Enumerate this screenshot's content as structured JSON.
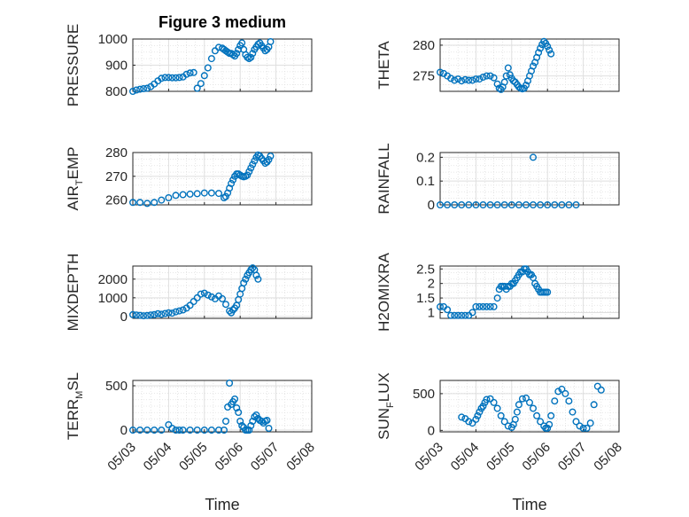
{
  "figure": {
    "title": "Figure 3 medium",
    "marker_color": "#0072bd",
    "axis_color": "#262626",
    "grid_color": "#dfdfdf"
  },
  "chart_data": [
    {
      "type": "scatter",
      "name": "PRESSURE",
      "ylabel": "PRESSURE",
      "title": "Figure 3 medium",
      "xlim": [
        "05/03",
        "05/08"
      ],
      "ylim": [
        800,
        1000
      ],
      "yticks": [
        800,
        900,
        1000
      ],
      "x_days": [
        0.0,
        0.1,
        0.2,
        0.3,
        0.4,
        0.5,
        0.6,
        0.7,
        0.8,
        0.9,
        1.0,
        1.1,
        1.2,
        1.3,
        1.4,
        1.5,
        1.6,
        1.7,
        1.8,
        1.9,
        2.0,
        2.1,
        2.2,
        2.3,
        2.4,
        2.5,
        2.55,
        2.6,
        2.65,
        2.7,
        2.75,
        2.8,
        2.85,
        2.9,
        2.95,
        3.0,
        3.05,
        3.1,
        3.15,
        3.2,
        3.25,
        3.3,
        3.35,
        3.4,
        3.45,
        3.5,
        3.55,
        3.6,
        3.65,
        3.7,
        3.75,
        3.8,
        3.85
      ],
      "y": [
        800,
        805,
        808,
        810,
        812,
        818,
        828,
        840,
        850,
        853,
        853,
        852,
        852,
        853,
        855,
        865,
        870,
        872,
        812,
        830,
        860,
        890,
        925,
        955,
        968,
        965,
        960,
        955,
        950,
        945,
        945,
        940,
        935,
        945,
        960,
        975,
        985,
        960,
        940,
        930,
        925,
        930,
        945,
        960,
        970,
        980,
        985,
        975,
        965,
        955,
        960,
        970,
        990
      ]
    },
    {
      "type": "scatter",
      "name": "THETA",
      "ylabel": "THETA",
      "xlim": [
        "05/03",
        "05/08"
      ],
      "ylim": [
        272.5,
        281
      ],
      "yticks": [
        275,
        280
      ],
      "x_days": [
        0.0,
        0.1,
        0.2,
        0.3,
        0.4,
        0.5,
        0.6,
        0.7,
        0.8,
        0.9,
        1.0,
        1.1,
        1.2,
        1.3,
        1.4,
        1.5,
        1.6,
        1.65,
        1.7,
        1.75,
        1.8,
        1.85,
        1.9,
        1.95,
        2.0,
        2.05,
        2.1,
        2.15,
        2.2,
        2.25,
        2.3,
        2.35,
        2.4,
        2.45,
        2.5,
        2.55,
        2.6,
        2.65,
        2.7,
        2.75,
        2.8,
        2.85,
        2.9,
        2.95,
        3.0,
        3.05,
        3.1
      ],
      "y": [
        275.6,
        275.4,
        275.0,
        274.6,
        274.3,
        274.5,
        274.2,
        274.4,
        274.3,
        274.3,
        274.5,
        274.5,
        274.8,
        275.0,
        275.0,
        274.7,
        273.7,
        273.0,
        272.8,
        273.2,
        274.0,
        275.0,
        276.3,
        275.2,
        274.6,
        274.2,
        274.0,
        273.6,
        273.2,
        273.0,
        272.9,
        273.0,
        273.5,
        274.2,
        275.0,
        275.8,
        276.6,
        277.2,
        278.0,
        278.8,
        279.5,
        280.1,
        280.6,
        280.3,
        279.8,
        279.2,
        278.6
      ]
    },
    {
      "type": "scatter",
      "name": "AIR_TEMP",
      "ylabel": "AIR_TEMP",
      "xlim": [
        "05/03",
        "05/08"
      ],
      "ylim": [
        258,
        280
      ],
      "yticks": [
        260,
        270,
        280
      ],
      "x_days": [
        0.0,
        0.2,
        0.4,
        0.6,
        0.8,
        1.0,
        1.2,
        1.4,
        1.6,
        1.8,
        2.0,
        2.2,
        2.4,
        2.55,
        2.6,
        2.65,
        2.7,
        2.75,
        2.8,
        2.85,
        2.9,
        2.95,
        3.0,
        3.05,
        3.1,
        3.15,
        3.2,
        3.25,
        3.3,
        3.35,
        3.4,
        3.45,
        3.5,
        3.55,
        3.6,
        3.65,
        3.7,
        3.75,
        3.8,
        3.85
      ],
      "y": [
        259.0,
        259.0,
        258.6,
        259.0,
        260.0,
        261.0,
        262.0,
        262.3,
        262.5,
        262.7,
        263.0,
        263.0,
        262.8,
        261.0,
        261.5,
        263.0,
        265.0,
        267.0,
        268.5,
        270.0,
        271.0,
        271.0,
        270.5,
        270.0,
        269.8,
        270.0,
        270.5,
        272.0,
        273.5,
        275.0,
        276.5,
        278.0,
        279.0,
        278.5,
        277.5,
        276.5,
        275.5,
        276.0,
        277.0,
        278.5
      ]
    },
    {
      "type": "scatter",
      "name": "RAINFALL",
      "ylabel": "RAINFALL",
      "xlim": [
        "05/03",
        "05/08"
      ],
      "ylim": [
        0,
        0.22
      ],
      "yticks": [
        0,
        0.1,
        0.2
      ],
      "x_days": [
        0.0,
        0.2,
        0.4,
        0.6,
        0.8,
        1.0,
        1.2,
        1.4,
        1.6,
        1.8,
        2.0,
        2.2,
        2.4,
        2.6,
        2.8,
        3.0,
        3.2,
        3.4,
        3.6,
        3.8,
        2.6
      ],
      "y": [
        0,
        0,
        0,
        0,
        0,
        0,
        0,
        0,
        0,
        0,
        0,
        0,
        0,
        0,
        0,
        0,
        0,
        0,
        0,
        0,
        0.2
      ]
    },
    {
      "type": "scatter",
      "name": "MIXDEPTH",
      "ylabel": "MIXDEPTH",
      "xlim": [
        "05/03",
        "05/08"
      ],
      "ylim": [
        -100,
        2700
      ],
      "yticks": [
        0,
        1000,
        2000
      ],
      "x_days": [
        0.0,
        0.1,
        0.2,
        0.3,
        0.4,
        0.5,
        0.6,
        0.7,
        0.8,
        0.9,
        1.0,
        1.1,
        1.2,
        1.3,
        1.4,
        1.5,
        1.6,
        1.7,
        1.8,
        1.9,
        2.0,
        2.1,
        2.2,
        2.3,
        2.4,
        2.5,
        2.6,
        2.7,
        2.75,
        2.8,
        2.85,
        2.9,
        2.95,
        3.0,
        3.05,
        3.1,
        3.15,
        3.2,
        3.25,
        3.3,
        3.35,
        3.4,
        3.45,
        3.5
      ],
      "y": [
        100,
        80,
        60,
        40,
        50,
        80,
        100,
        150,
        120,
        160,
        200,
        180,
        250,
        300,
        350,
        450,
        600,
        800,
        1000,
        1200,
        1250,
        1150,
        1050,
        950,
        1100,
        950,
        650,
        300,
        200,
        350,
        450,
        600,
        900,
        1200,
        1500,
        1800,
        2000,
        2200,
        2350,
        2500,
        2600,
        2500,
        2200,
        2000
      ]
    },
    {
      "type": "scatter",
      "name": "H2OMIXRA",
      "ylabel": "H2OMIXRA",
      "xlim": [
        "05/03",
        "05/08"
      ],
      "ylim": [
        0.8,
        2.6
      ],
      "yticks": [
        1,
        1.5,
        2,
        2.5
      ],
      "x_days": [
        0.0,
        0.1,
        0.2,
        0.3,
        0.4,
        0.5,
        0.6,
        0.7,
        0.8,
        0.9,
        1.0,
        1.1,
        1.2,
        1.3,
        1.4,
        1.5,
        1.6,
        1.65,
        1.7,
        1.75,
        1.8,
        1.85,
        1.9,
        1.95,
        2.0,
        2.05,
        2.1,
        2.15,
        2.2,
        2.25,
        2.3,
        2.35,
        2.4,
        2.45,
        2.5,
        2.55,
        2.6,
        2.65,
        2.7,
        2.75,
        2.8,
        2.85,
        2.9,
        2.95,
        3.0
      ],
      "y": [
        1.2,
        1.2,
        1.1,
        0.9,
        0.9,
        0.9,
        0.9,
        0.9,
        0.9,
        1.0,
        1.2,
        1.2,
        1.2,
        1.2,
        1.2,
        1.2,
        1.5,
        1.8,
        1.9,
        1.9,
        1.9,
        1.8,
        1.9,
        1.9,
        2.0,
        2.0,
        2.1,
        2.2,
        2.3,
        2.4,
        2.4,
        2.5,
        2.5,
        2.4,
        2.3,
        2.3,
        2.2,
        2.0,
        1.9,
        1.8,
        1.7,
        1.7,
        1.7,
        1.7,
        1.7
      ]
    },
    {
      "type": "scatter",
      "name": "TERR_MSL",
      "ylabel": "TERR_MSL",
      "xlim": [
        "05/03",
        "05/08"
      ],
      "ylim": [
        -20,
        560
      ],
      "yticks": [
        0,
        500
      ],
      "xlabel": "Time",
      "xticks": [
        "05/03",
        "05/04",
        "05/05",
        "05/06",
        "05/07",
        "05/08"
      ],
      "x_days": [
        0.0,
        0.2,
        0.4,
        0.6,
        0.8,
        1.0,
        1.1,
        1.2,
        1.3,
        1.4,
        1.6,
        1.8,
        2.0,
        2.2,
        2.4,
        2.55,
        2.6,
        2.65,
        2.7,
        2.75,
        2.8,
        2.85,
        2.9,
        2.95,
        3.0,
        3.05,
        3.1,
        3.15,
        3.2,
        3.25,
        3.3,
        3.35,
        3.4,
        3.45,
        3.5,
        3.55,
        3.6,
        3.65,
        3.7,
        3.75,
        3.8
      ],
      "y": [
        0,
        0,
        0,
        0,
        0,
        60,
        20,
        0,
        0,
        0,
        0,
        0,
        0,
        0,
        0,
        0,
        100,
        260,
        530,
        290,
        320,
        350,
        250,
        200,
        100,
        50,
        30,
        0,
        0,
        0,
        50,
        100,
        150,
        170,
        130,
        110,
        100,
        80,
        100,
        110,
        20
      ]
    },
    {
      "type": "scatter",
      "name": "SUN_FLUX",
      "ylabel": "SUN_FLUX",
      "xlim": [
        "05/03",
        "05/08"
      ],
      "ylim": [
        -20,
        680
      ],
      "yticks": [
        0,
        500
      ],
      "xlabel": "Time",
      "xticks": [
        "05/03",
        "05/04",
        "05/05",
        "05/06",
        "05/07",
        "05/08"
      ],
      "x_days": [
        0.6,
        0.7,
        0.8,
        0.9,
        1.0,
        1.05,
        1.1,
        1.15,
        1.2,
        1.25,
        1.3,
        1.4,
        1.5,
        1.6,
        1.7,
        1.8,
        1.9,
        2.0,
        2.05,
        2.1,
        2.15,
        2.2,
        2.3,
        2.4,
        2.5,
        2.6,
        2.7,
        2.8,
        2.9,
        2.95,
        3.0,
        3.05,
        3.1,
        3.2,
        3.3,
        3.4,
        3.5,
        3.6,
        3.7,
        3.8,
        3.9,
        4.0,
        4.1,
        4.2,
        4.3,
        4.4,
        4.5
      ],
      "y": [
        180,
        160,
        120,
        100,
        150,
        200,
        250,
        300,
        330,
        380,
        420,
        430,
        380,
        300,
        200,
        120,
        60,
        40,
        80,
        150,
        250,
        350,
        430,
        440,
        380,
        300,
        200,
        120,
        60,
        30,
        30,
        80,
        200,
        400,
        530,
        560,
        500,
        400,
        250,
        120,
        60,
        30,
        30,
        100,
        350,
        600,
        550
      ]
    }
  ]
}
